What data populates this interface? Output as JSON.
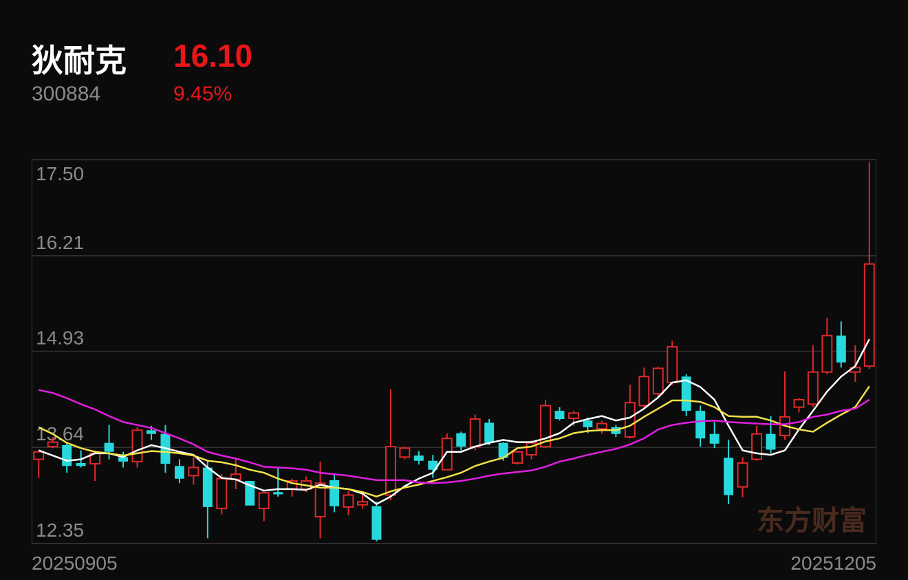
{
  "header": {
    "name": "狄耐克",
    "price": "16.10",
    "code": "300884",
    "change": "9.45%"
  },
  "watermark": "东方财富",
  "chart_data": {
    "type": "candlestick",
    "categories": [
      "20250905",
      null,
      null,
      null,
      null,
      null,
      null,
      null,
      null,
      null,
      null,
      null,
      null,
      null,
      null,
      null,
      null,
      null,
      null,
      null,
      null,
      null,
      null,
      null,
      null,
      null,
      null,
      null,
      null,
      null,
      null,
      null,
      null,
      null,
      null,
      null,
      null,
      null,
      null,
      null,
      null,
      null,
      null,
      null,
      null,
      null,
      null,
      null,
      null,
      null,
      null,
      null,
      null,
      null,
      null,
      null,
      null,
      null,
      null,
      "20251205"
    ],
    "open": [
      13.48,
      13.65,
      13.67,
      13.43,
      13.42,
      13.7,
      13.51,
      13.45,
      13.87,
      13.82,
      13.39,
      13.26,
      13.37,
      12.82,
      13.21,
      13.19,
      12.82,
      13.04,
      13.08,
      13.08,
      12.71,
      13.2,
      12.84,
      12.87,
      12.85,
      13.0,
      13.51,
      13.53,
      13.46,
      13.34,
      13.83,
      13.65,
      13.97,
      13.7,
      13.43,
      13.54,
      13.65,
      14.13,
      14.03,
      14.0,
      13.89,
      13.91,
      13.78,
      14.2,
      14.36,
      14.51,
      14.59,
      14.13,
      13.82,
      13.5,
      13.11,
      13.48,
      13.82,
      13.8,
      14.18,
      14.22,
      14.65,
      15.14,
      14.65,
      14.73
    ],
    "high": [
      13.58,
      13.78,
      13.7,
      13.6,
      13.6,
      13.94,
      13.58,
      13.91,
      13.93,
      13.94,
      13.48,
      13.51,
      13.46,
      13.28,
      13.5,
      13.19,
      13.05,
      13.37,
      13.22,
      13.25,
      13.45,
      13.28,
      13.05,
      13.02,
      12.91,
      14.42,
      13.65,
      13.59,
      13.54,
      13.83,
      13.85,
      14.08,
      14.02,
      13.71,
      13.59,
      13.74,
      14.28,
      14.18,
      14.13,
      14.04,
      14.0,
      13.94,
      14.48,
      14.71,
      14.72,
      15.07,
      14.62,
      14.2,
      13.98,
      13.74,
      13.51,
      13.93,
      14.06,
      14.66,
      14.3,
      15.01,
      15.38,
      15.33,
      15.01,
      17.47
    ],
    "low": [
      13.23,
      13.63,
      13.3,
      13.37,
      13.19,
      13.48,
      13.37,
      13.37,
      13.74,
      13.3,
      13.16,
      13.14,
      12.42,
      12.74,
      13.08,
      12.86,
      12.65,
      12.98,
      12.98,
      13.04,
      12.42,
      12.77,
      12.73,
      12.82,
      12.38,
      12.93,
      13.48,
      13.41,
      13.23,
      13.33,
      13.6,
      13.6,
      13.67,
      13.46,
      13.41,
      13.48,
      13.63,
      14.0,
      13.93,
      13.83,
      13.82,
      13.78,
      13.76,
      14.15,
      14.31,
      14.48,
      14.06,
      13.65,
      13.63,
      12.88,
      12.97,
      13.46,
      13.56,
      13.74,
      14.11,
      14.18,
      14.62,
      14.71,
      14.52,
      14.69
    ],
    "close": [
      13.58,
      13.71,
      13.39,
      13.39,
      13.56,
      13.58,
      13.45,
      13.87,
      13.82,
      13.42,
      13.22,
      13.37,
      12.84,
      13.22,
      13.28,
      12.86,
      13.03,
      13.01,
      13.19,
      13.19,
      13.16,
      12.85,
      13.0,
      12.91,
      12.4,
      13.65,
      13.63,
      13.46,
      13.34,
      13.76,
      13.65,
      14.02,
      13.7,
      13.5,
      13.58,
      13.7,
      14.2,
      14.02,
      14.1,
      13.91,
      13.96,
      13.82,
      14.24,
      14.59,
      14.7,
      14.99,
      14.13,
      13.76,
      13.69,
      13.0,
      13.43,
      13.82,
      13.61,
      14.05,
      14.28,
      14.65,
      15.14,
      14.78,
      14.71,
      16.1
    ],
    "up_color": "#e0292b",
    "down_color": "#27d9dc",
    "lines": [
      {
        "color": "#ffffff",
        "values": [
          13.6,
          13.53,
          13.46,
          13.48,
          13.56,
          13.56,
          13.51,
          13.6,
          13.67,
          13.63,
          13.58,
          13.54,
          13.37,
          13.23,
          13.21,
          13.13,
          13.06,
          13.08,
          13.08,
          13.07,
          13.14,
          13.1,
          13.08,
          13.02,
          12.88,
          12.98,
          13.12,
          13.22,
          13.3,
          13.58,
          13.58,
          13.65,
          13.7,
          13.74,
          13.71,
          13.71,
          13.76,
          13.83,
          13.97,
          14.02,
          14.06,
          14.0,
          14.04,
          14.16,
          14.31,
          14.51,
          14.54,
          14.45,
          14.28,
          13.93,
          13.6,
          13.56,
          13.54,
          13.6,
          13.88,
          14.13,
          14.39,
          14.59,
          14.73,
          15.09
        ]
      },
      {
        "color": "#f3e24a",
        "values": [
          13.91,
          13.82,
          13.7,
          13.63,
          13.58,
          13.56,
          13.53,
          13.56,
          13.59,
          13.58,
          13.56,
          13.53,
          13.46,
          13.44,
          13.4,
          13.34,
          13.3,
          13.22,
          13.16,
          13.13,
          13.1,
          13.1,
          13.08,
          13.04,
          12.98,
          13.05,
          13.1,
          13.14,
          13.19,
          13.24,
          13.3,
          13.39,
          13.45,
          13.5,
          13.63,
          13.65,
          13.72,
          13.76,
          13.83,
          13.86,
          13.87,
          13.87,
          13.93,
          14.05,
          14.16,
          14.27,
          14.27,
          14.25,
          14.18,
          14.06,
          14.05,
          14.05,
          14.0,
          13.93,
          13.88,
          13.85,
          13.97,
          14.08,
          14.18,
          14.46
        ]
      },
      {
        "color": "#e11fe0",
        "values": [
          14.41,
          14.37,
          14.3,
          14.22,
          14.15,
          14.06,
          13.98,
          13.94,
          13.9,
          13.83,
          13.76,
          13.68,
          13.58,
          13.53,
          13.49,
          13.44,
          13.38,
          13.37,
          13.36,
          13.34,
          13.3,
          13.28,
          13.26,
          13.23,
          13.2,
          13.2,
          13.2,
          13.17,
          13.16,
          13.17,
          13.19,
          13.22,
          13.26,
          13.29,
          13.31,
          13.33,
          13.38,
          13.45,
          13.49,
          13.54,
          13.58,
          13.62,
          13.68,
          13.76,
          13.88,
          13.94,
          13.97,
          13.99,
          14.0,
          13.98,
          13.97,
          13.96,
          13.95,
          13.95,
          13.98,
          14.05,
          14.08,
          14.13,
          14.16,
          14.28
        ]
      }
    ],
    "ylim": [
      12.35,
      17.5
    ],
    "yticks": [
      12.35,
      13.64,
      14.93,
      16.21,
      {
        "value": 17.5,
        "label": "17.50"
      }
    ],
    "grid": true
  }
}
